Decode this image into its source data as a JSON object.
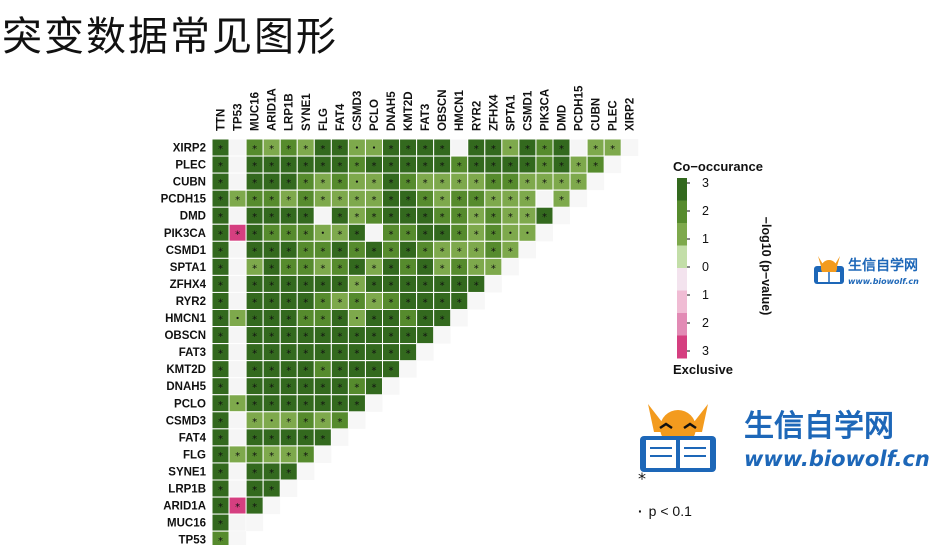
{
  "page": {
    "title": "突变数据常见图形"
  },
  "chart_data": {
    "type": "heatmap",
    "x_genes": [
      "TTN",
      "TP53",
      "MUC16",
      "ARID1A",
      "LRP1B",
      "SYNE1",
      "FLG",
      "FAT4",
      "CSMD3",
      "PCLO",
      "DNAH5",
      "KMT2D",
      "FAT3",
      "OBSCN",
      "HMCN1",
      "RYR2",
      "ZFHX4",
      "SPTA1",
      "CSMD1",
      "PIK3CA",
      "DMD",
      "PCDH15",
      "CUBN",
      "PLEC",
      "XIRP2"
    ],
    "y_genes": [
      "XIRP2",
      "PLEC",
      "CUBN",
      "PCDH15",
      "DMD",
      "PIK3CA",
      "CSMD1",
      "SPTA1",
      "ZFHX4",
      "RYR2",
      "HMCN1",
      "OBSCN",
      "FAT3",
      "KMT2D",
      "DNAH5",
      "PCLO",
      "CSMD3",
      "FAT4",
      "FLG",
      "SYNE1",
      "LRP1B",
      "ARID1A",
      "MUC16",
      "TP53",
      "TTN"
    ],
    "cells": [
      [
        "3*",
        "0",
        "2*",
        "1*",
        "2*",
        "1*",
        "3*",
        "3*",
        "1.",
        "1.",
        "3*",
        "3*",
        "3*",
        "3*",
        "0",
        "3*",
        "3*",
        "1.",
        "3*",
        "2*",
        "3*",
        "0",
        "1*",
        "1*"
      ],
      [
        "3*",
        "0",
        "3*",
        "3*",
        "3*",
        "3*",
        "3*",
        "3*",
        "2*",
        "3*",
        "3*",
        "3*",
        "3*",
        "3*",
        "2*",
        "3*",
        "3*",
        "3*",
        "3*",
        "2*",
        "3*",
        "1*",
        "2*"
      ],
      [
        "3*",
        "0",
        "3*",
        "3*",
        "3*",
        "2*",
        "1*",
        "2*",
        "1.",
        "1*",
        "3*",
        "2*",
        "1*",
        "1*",
        "1*",
        "1*",
        "2*",
        "2*",
        "1*",
        "1*",
        "1*",
        "1*"
      ],
      [
        "3*",
        "1*",
        "2*",
        "2*",
        "1*",
        "2*",
        "1*",
        "1*",
        "1*",
        "1*",
        "3*",
        "3*",
        "2*",
        "1*",
        "2*",
        "2*",
        "1*",
        "1*",
        "1*",
        "0",
        "1*"
      ],
      [
        "3*",
        "0",
        "3*",
        "3*",
        "3*",
        "3*",
        "0",
        "3*",
        "1*",
        "2*",
        "3*",
        "3*",
        "3*",
        "2*",
        "2*",
        "1*",
        "2*",
        "1*",
        "1*",
        "3*"
      ],
      [
        "3*",
        "-3*",
        "3*",
        "2*",
        "2*",
        "2*",
        "1.",
        "1*",
        "3*",
        "0",
        "2*",
        "2*",
        "3*",
        "3*",
        "2*",
        "1*",
        "2*",
        "1.",
        "1."
      ],
      [
        "3*",
        "0",
        "3*",
        "3*",
        "3*",
        "2*",
        "2*",
        "3*",
        "2*",
        "3*",
        "2*",
        "3*",
        "2*",
        "1*",
        "1*",
        "1*",
        "2*",
        "1*"
      ],
      [
        "3*",
        "0",
        "1*",
        "3*",
        "2*",
        "2*",
        "1*",
        "2*",
        "3*",
        "1*",
        "3*",
        "2*",
        "3*",
        "1*",
        "2*",
        "1*",
        "1*"
      ],
      [
        "3*",
        "0",
        "3*",
        "3*",
        "3*",
        "3*",
        "3*",
        "3*",
        "1*",
        "3*",
        "3*",
        "3*",
        "3*",
        "3*",
        "3*",
        "3*"
      ],
      [
        "3*",
        "0",
        "3*",
        "3*",
        "3*",
        "3*",
        "2*",
        "1*",
        "2*",
        "1*",
        "2*",
        "3*",
        "3*",
        "3*",
        "3*"
      ],
      [
        "3*",
        "1.",
        "3*",
        "3*",
        "3*",
        "2*",
        "2*",
        "3*",
        "1.",
        "3*",
        "3*",
        "2*",
        "3*",
        "3*"
      ],
      [
        "3*",
        "0",
        "3*",
        "3*",
        "3*",
        "3*",
        "3*",
        "3*",
        "3*",
        "3*",
        "3*",
        "3*",
        "3*"
      ],
      [
        "3*",
        "0",
        "3*",
        "3*",
        "3*",
        "3*",
        "3*",
        "3*",
        "3*",
        "3*",
        "3*",
        "3*"
      ],
      [
        "3*",
        "0",
        "3*",
        "3*",
        "3*",
        "3*",
        "2*",
        "3*",
        "3*",
        "3*",
        "3*"
      ],
      [
        "3*",
        "0",
        "3*",
        "3*",
        "3*",
        "3*",
        "3*",
        "3*",
        "2*",
        "3*"
      ],
      [
        "3*",
        "1.",
        "3*",
        "3*",
        "3*",
        "3*",
        "3*",
        "3*",
        "3*"
      ],
      [
        "3*",
        "0",
        "1*",
        "1.",
        "1*",
        "2*",
        "1*",
        "2*"
      ],
      [
        "3*",
        "0",
        "3*",
        "3*",
        "3*",
        "3*",
        "3*"
      ],
      [
        "3*",
        "1*",
        "2*",
        "1*",
        "1*",
        "2*"
      ],
      [
        "3*",
        "0",
        "3*",
        "3*",
        "3*"
      ],
      [
        "3*",
        "0",
        "3*",
        "3*"
      ],
      [
        "3*",
        "-3*",
        "3*"
      ],
      [
        "3*",
        "0"
      ],
      [
        "2*"
      ],
      []
    ],
    "legend": {
      "title_top": "Co−occurance",
      "title_bottom": "Exclusive",
      "axis_label": "−log10 (p−value)",
      "tick_labels": [
        "3",
        "2",
        "1",
        "0",
        "1",
        "2",
        "3"
      ],
      "colors": [
        "#33691e",
        "#568b2d",
        "#7ea94c",
        "#c3dea8",
        "#f3e3ee",
        "#f0bcd4",
        "#e28bb5",
        "#d53f80"
      ]
    },
    "significance": {
      "p005_label": "*",
      "p01_label": "p < 0.1"
    }
  },
  "logos": {
    "small": {
      "name": "生信自学网",
      "url": "www.biowolf.cn"
    },
    "big": {
      "name": "生信自学网",
      "url": "www.biowolf.cn"
    }
  }
}
